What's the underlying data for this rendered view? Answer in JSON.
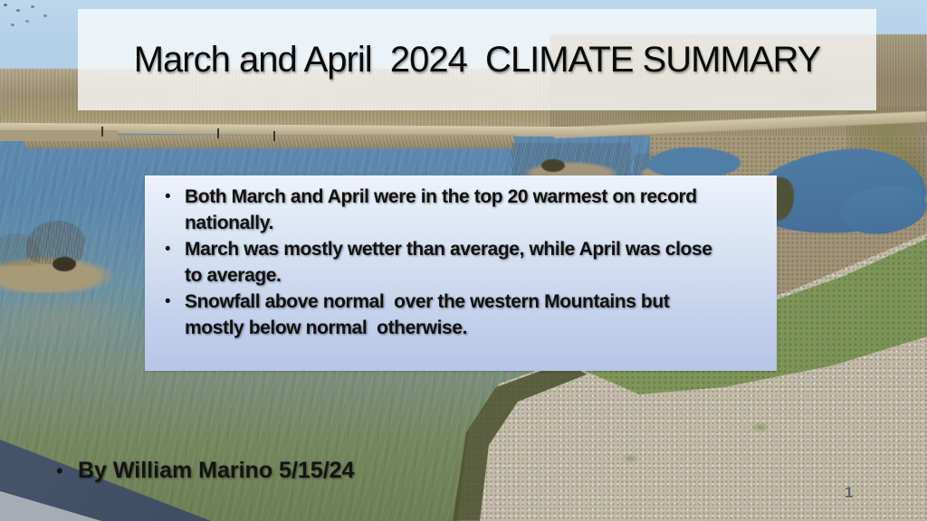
{
  "slide": {
    "title": "March and April  2024  CLIMATE SUMMARY",
    "bullet_char": "•",
    "bullets": [
      "Both March and April were in the top 20 warmest on record\nnationally.",
      "March was mostly wetter than average, while April was close\nto average.",
      "Snowfall above normal  over the western Mountains but\nmostly below normal  otherwise."
    ],
    "byline": "By William Marino 5/15/24",
    "slide_number": "1",
    "palette": {
      "sky": "#b6d1e7",
      "water_blue": "#5c89b0",
      "water_green": "#6e7e54",
      "treeline_tan": "#a3957b",
      "gravel": "#c3bdab",
      "grass": "#7e9458",
      "pond_blue": "#4d7ba5",
      "banner_bg": "rgba(251,252,253,0.78)",
      "box_gradient_top": "#eef2fa",
      "box_gradient_bottom": "#b6c6e6",
      "text_color": "#111111",
      "slide_number_color": "#5b606a"
    }
  }
}
